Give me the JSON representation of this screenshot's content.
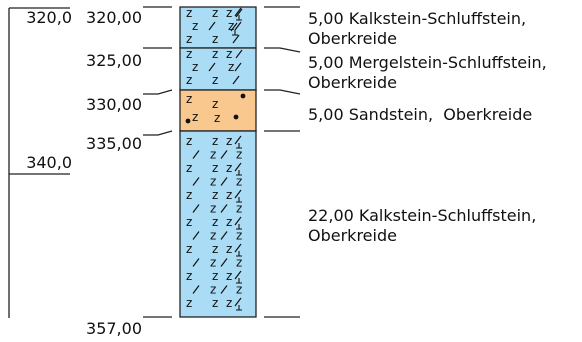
{
  "scale": {
    "ticks": [
      "320,0",
      "340,0"
    ]
  },
  "depths": [
    "320,00",
    "325,00",
    "330,00",
    "335,00",
    "357,00"
  ],
  "layers": [
    {
      "thickness": "5,00",
      "description": "Kalkstein-Schluffstein,",
      "age": "Oberkreide",
      "fill": "#abdcf5"
    },
    {
      "thickness": "5,00",
      "description": "Mergelstein-Schluffstein,",
      "age": "Oberkreide",
      "fill": "#abdcf5"
    },
    {
      "thickness": "5,00",
      "description": "Sandstein,",
      "age": "Oberkreide",
      "fill": "#f8c88f"
    },
    {
      "thickness": "22,00",
      "description": "Kalkstein-Schluffstein,",
      "age": "Oberkreide",
      "fill": "#abdcf5"
    }
  ],
  "colors": {
    "line": "#222222",
    "symbol": "#111111"
  }
}
